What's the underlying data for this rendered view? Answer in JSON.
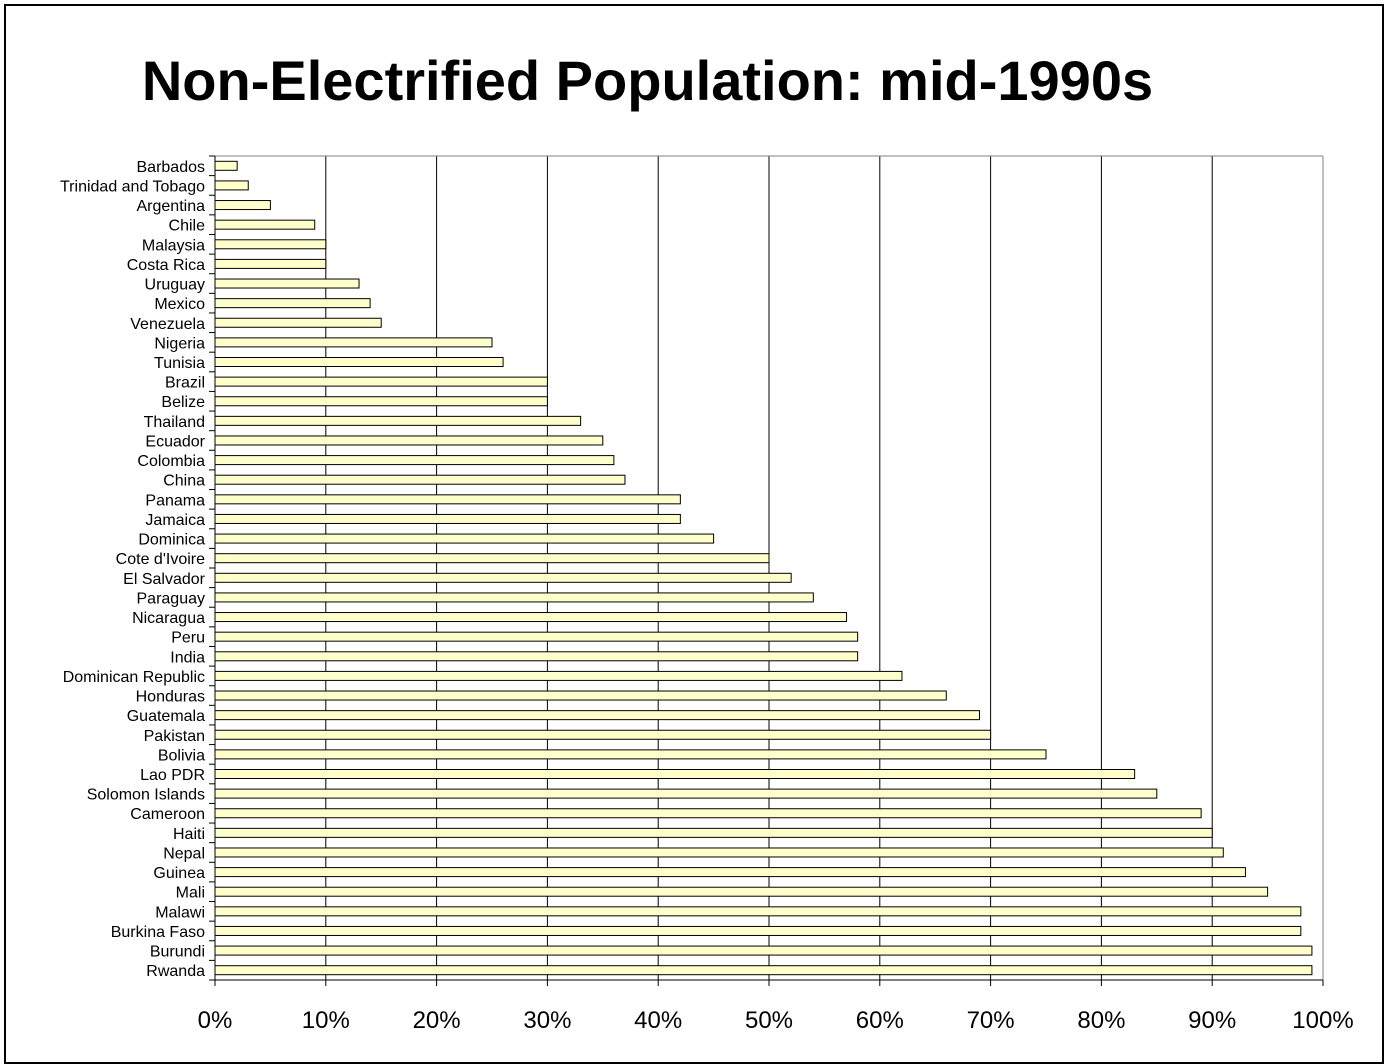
{
  "chart_data": {
    "type": "bar",
    "orientation": "horizontal",
    "title": "Non-Electrified Population: mid-1990s",
    "categories": [
      "Barbados",
      "Trinidad and Tobago",
      "Argentina",
      "Chile",
      "Malaysia",
      "Costa Rica",
      "Uruguay",
      "Mexico",
      "Venezuela",
      "Nigeria",
      "Tunisia",
      "Brazil",
      "Belize",
      "Thailand",
      "Ecuador",
      "Colombia",
      "China",
      "Panama",
      "Jamaica",
      "Dominica",
      "Cote d'Ivoire",
      "El Salvador",
      "Paraguay",
      "Nicaragua",
      "Peru",
      "India",
      "Dominican Republic",
      "Honduras",
      "Guatemala",
      "Pakistan",
      "Bolivia",
      "Lao PDR",
      "Solomon Islands",
      "Cameroon",
      "Haiti",
      "Nepal",
      "Guinea",
      "Mali",
      "Malawi",
      "Burkina Faso",
      "Burundi",
      "Rwanda"
    ],
    "values": [
      2,
      3,
      5,
      9,
      10,
      10,
      13,
      14,
      15,
      25,
      26,
      30,
      30,
      33,
      35,
      36,
      37,
      42,
      42,
      45,
      50,
      52,
      54,
      57,
      58,
      58,
      62,
      66,
      69,
      70,
      75,
      83,
      85,
      89,
      90,
      91,
      93,
      95,
      98,
      98,
      99,
      99
    ],
    "xlim": [
      0,
      100
    ],
    "x_ticks": [
      "0%",
      "10%",
      "20%",
      "30%",
      "40%",
      "50%",
      "60%",
      "70%",
      "80%",
      "90%",
      "100%"
    ],
    "xlabel": "",
    "ylabel": "",
    "grid": "vertical",
    "legend": "none",
    "colors": {
      "bar_fill": "#FFFFCC",
      "bar_stroke": "#000000",
      "grid": "#000000"
    }
  }
}
